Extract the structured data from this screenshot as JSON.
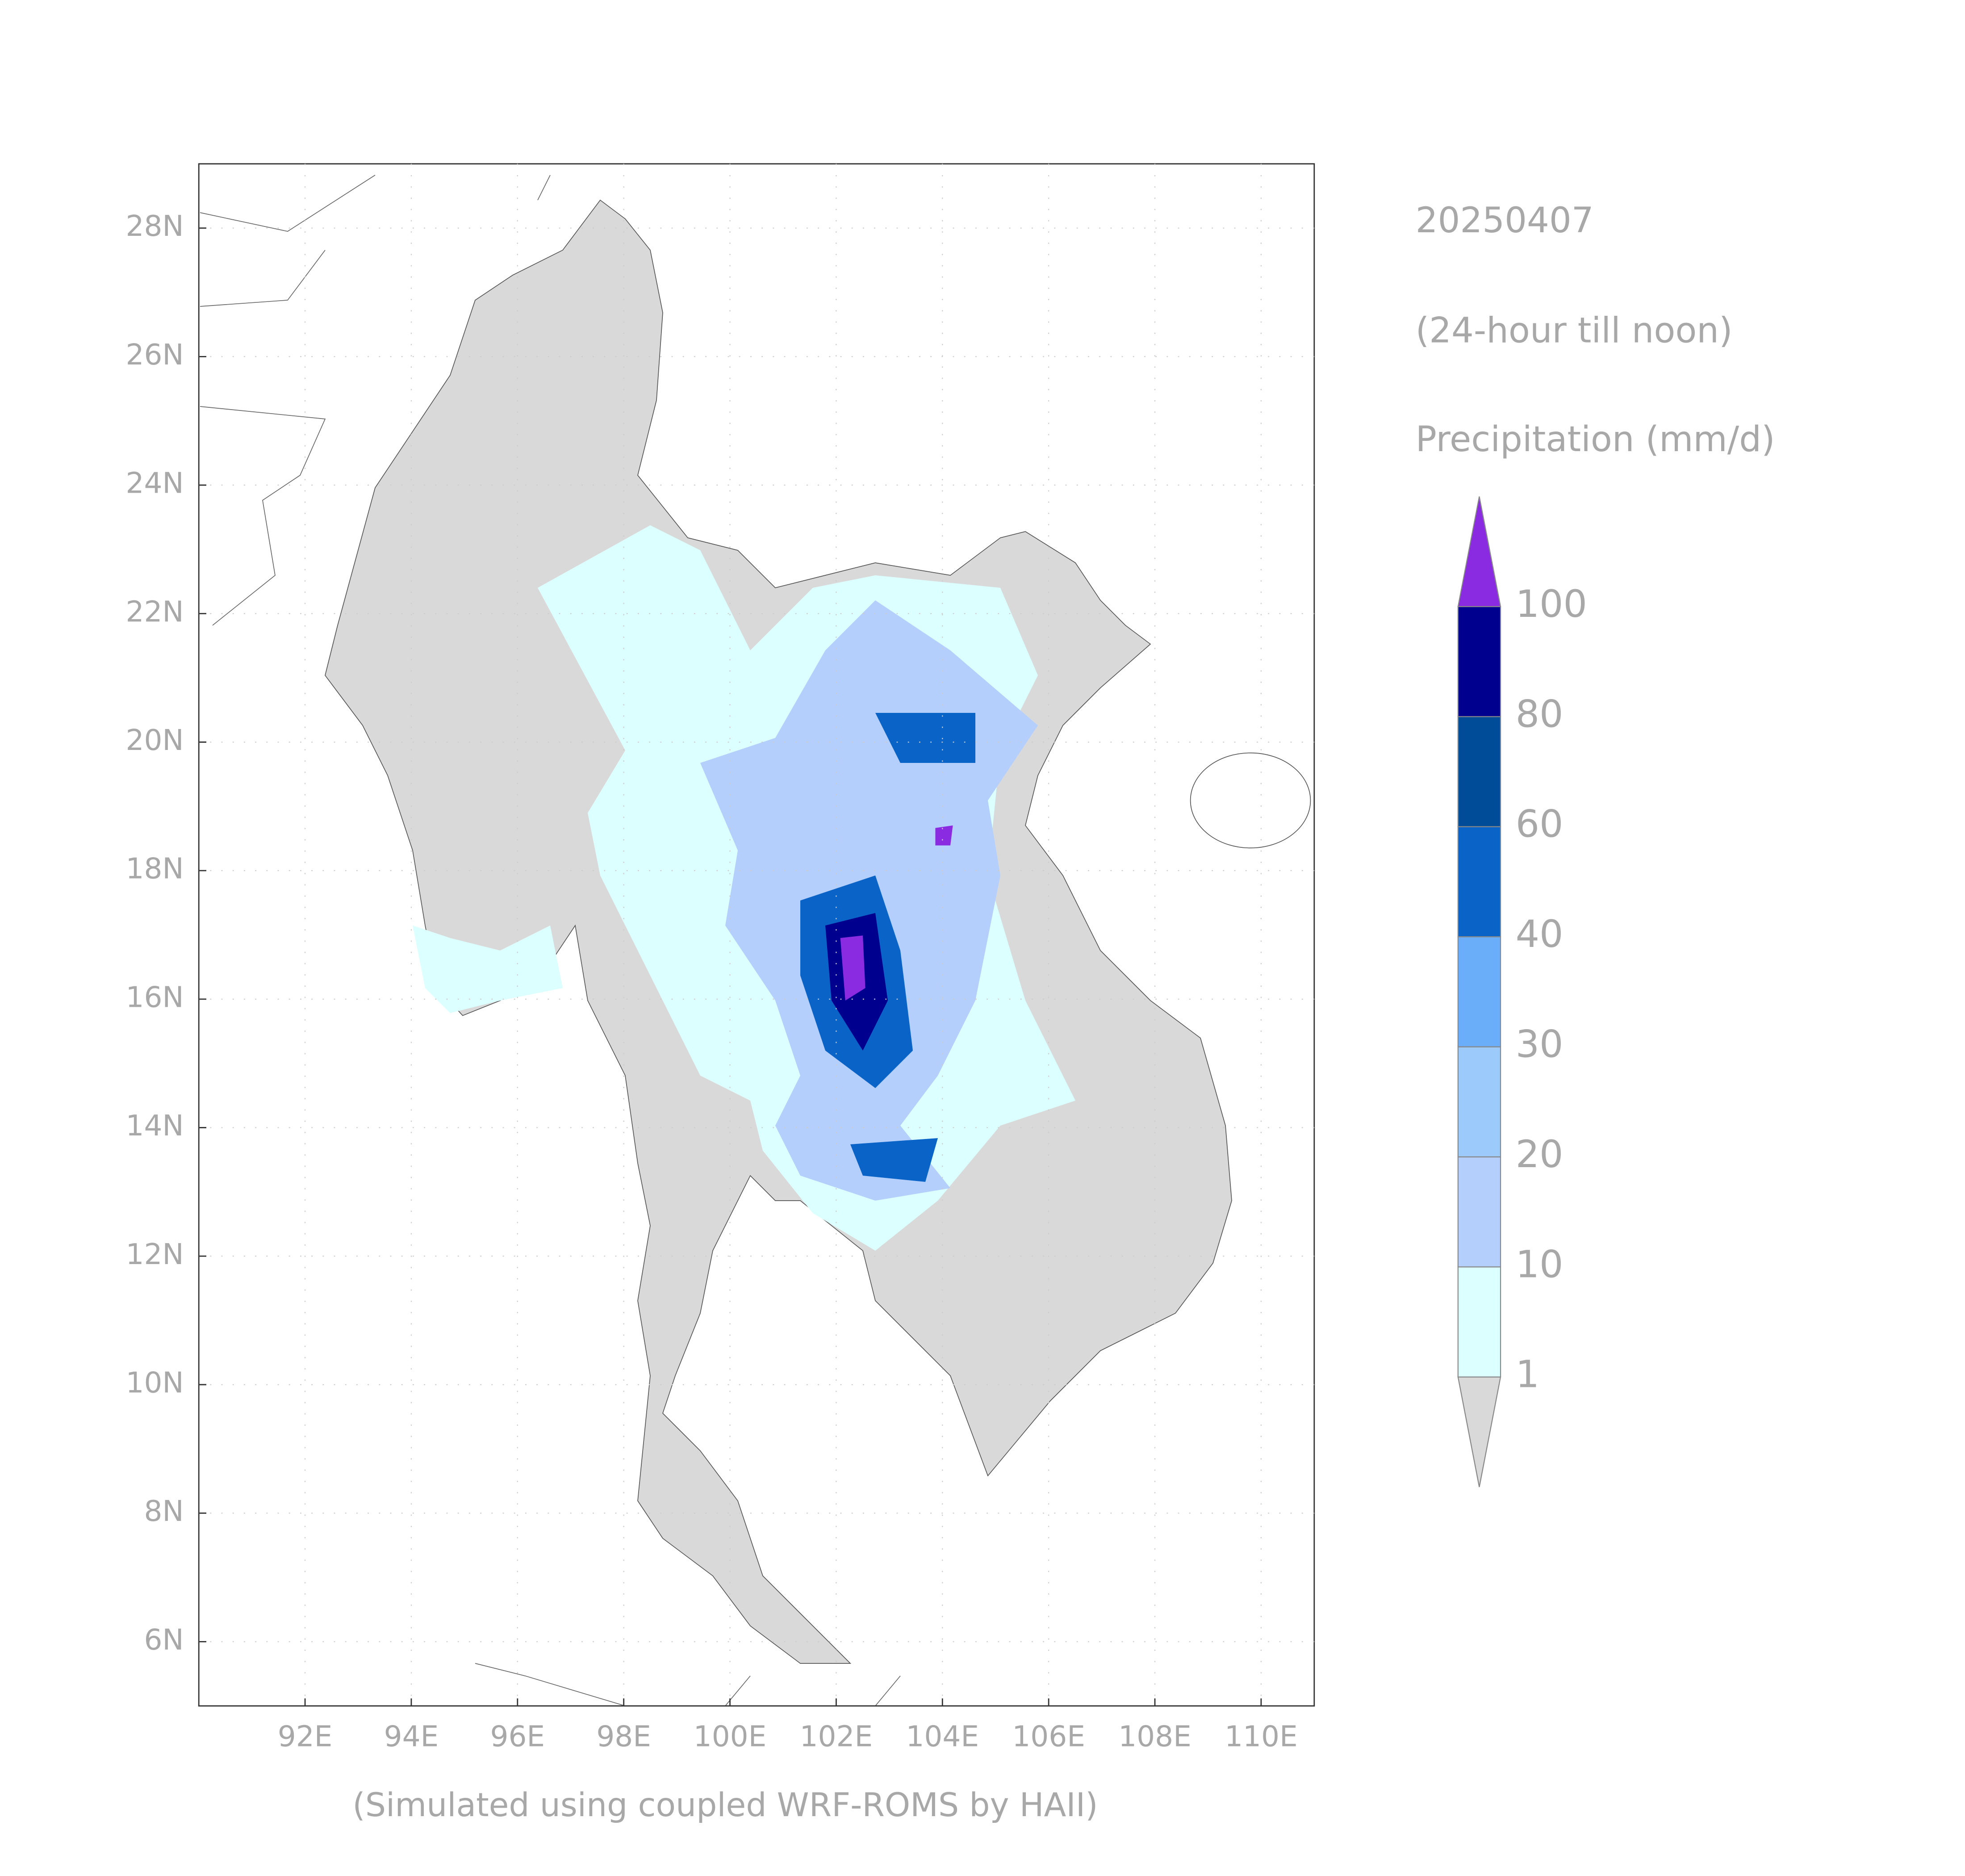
{
  "chart_data": {
    "type": "map",
    "title": "20250407",
    "subtitle": "(24-hour till noon)",
    "legend_title": "Precipitation (mm/d)",
    "footer": "(Simulated using coupled WRF-ROMS by HAII)",
    "xlim": [
      90,
      111
    ],
    "ylim": [
      5,
      29
    ],
    "xticks": [
      {
        "value": 92,
        "label": "92E"
      },
      {
        "value": 94,
        "label": "94E"
      },
      {
        "value": 96,
        "label": "96E"
      },
      {
        "value": 98,
        "label": "98E"
      },
      {
        "value": 100,
        "label": "100E"
      },
      {
        "value": 102,
        "label": "102E"
      },
      {
        "value": 104,
        "label": "104E"
      },
      {
        "value": 106,
        "label": "106E"
      },
      {
        "value": 108,
        "label": "108E"
      },
      {
        "value": 110,
        "label": "110E"
      }
    ],
    "yticks": [
      {
        "value": 6,
        "label": "6N"
      },
      {
        "value": 8,
        "label": "8N"
      },
      {
        "value": 10,
        "label": "10N"
      },
      {
        "value": 12,
        "label": "12N"
      },
      {
        "value": 14,
        "label": "14N"
      },
      {
        "value": 16,
        "label": "16N"
      },
      {
        "value": 18,
        "label": "18N"
      },
      {
        "value": 20,
        "label": "20N"
      },
      {
        "value": 22,
        "label": "22N"
      },
      {
        "value": 24,
        "label": "24N"
      },
      {
        "value": 26,
        "label": "26N"
      },
      {
        "value": 28,
        "label": "28N"
      }
    ],
    "grid": true,
    "colorbar": {
      "levels": [
        1,
        10,
        20,
        30,
        40,
        60,
        80,
        100
      ],
      "below_color": "#d9d9d9",
      "colors": [
        "#dcffff",
        "#b5cffc",
        "#9ccbfb",
        "#6aaefa",
        "#0a64c8",
        "#004c98",
        "#00008f"
      ],
      "above_color": "#8a2be2"
    }
  }
}
